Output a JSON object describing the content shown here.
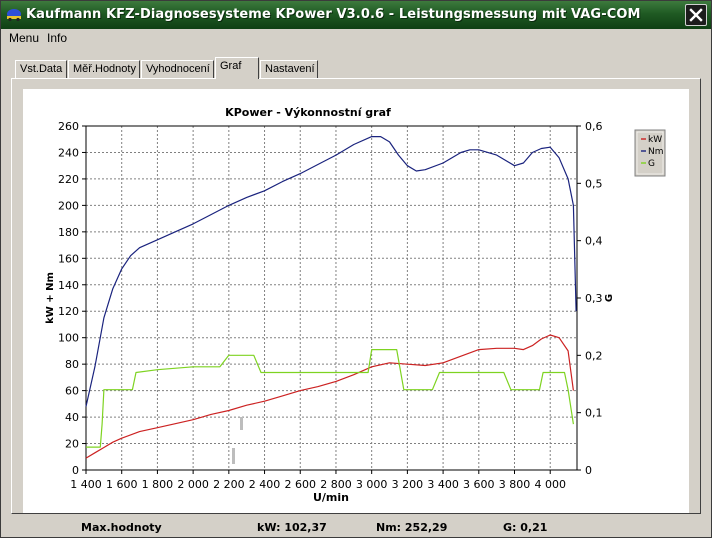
{
  "window": {
    "title": "Kaufmann KFZ-Diagnosesysteme  KPower V3.0.6 - Leistungsmessung mit VAG-COM",
    "close_icon": "close-x-icon",
    "app_icon": "car-logo-icon"
  },
  "menu": {
    "items": [
      "Menu",
      "Info"
    ]
  },
  "tabs": {
    "items": [
      "Vst.Data",
      "Měř.Hodnoty",
      "Vyhodnocení",
      "Graf",
      "Nastavení"
    ],
    "active": "Graf"
  },
  "chart_data": {
    "type": "line",
    "title": "KPower - Výkonnostní graf",
    "xlabel": "U/min",
    "ylabel": "kW + Nm",
    "y2label": "G",
    "xlim": [
      1400,
      4150
    ],
    "ylim": [
      0,
      260
    ],
    "y2lim": [
      0,
      0.6
    ],
    "xticks": [
      1400,
      1600,
      1800,
      2000,
      2200,
      2400,
      2600,
      2800,
      3000,
      3200,
      3400,
      3600,
      3800,
      4000
    ],
    "xtick_labels": [
      "1 400",
      "1 600",
      "1 800",
      "2 000",
      "2 200",
      "2 400",
      "2 600",
      "2 800",
      "3 000",
      "3 200",
      "3 400",
      "3 600",
      "3 800",
      "4 000"
    ],
    "yticks": [
      0,
      20,
      40,
      60,
      80,
      100,
      120,
      140,
      160,
      180,
      200,
      220,
      240,
      260
    ],
    "y2ticks": [
      0,
      0.1,
      0.2,
      0.3,
      0.4,
      0.5,
      0.6
    ],
    "y2tick_labels": [
      "0",
      "0,1",
      "0,2",
      "0,3",
      "0,4",
      "0,5",
      "0,6"
    ],
    "grid": true,
    "legend_position": "top-right",
    "series": [
      {
        "name": "kW",
        "color": "#cc2222",
        "axis": "left",
        "x": [
          1400,
          1450,
          1500,
          1550,
          1600,
          1700,
          1800,
          1900,
          2000,
          2100,
          2200,
          2300,
          2400,
          2500,
          2600,
          2700,
          2800,
          2900,
          3000,
          3100,
          3200,
          3300,
          3400,
          3500,
          3600,
          3700,
          3800,
          3850,
          3900,
          3950,
          4000,
          4050,
          4100,
          4130
        ],
        "values": [
          9,
          13,
          17,
          21,
          24,
          29,
          32,
          35,
          38,
          42,
          45,
          49,
          52,
          56,
          60,
          63,
          67,
          72,
          78,
          81,
          80,
          79,
          81,
          86,
          91,
          92,
          92,
          91,
          94,
          99,
          102,
          100,
          90,
          60
        ]
      },
      {
        "name": "Nm",
        "color": "#1a237e",
        "axis": "left",
        "x": [
          1400,
          1450,
          1500,
          1550,
          1600,
          1650,
          1700,
          1800,
          1900,
          2000,
          2100,
          2200,
          2300,
          2400,
          2500,
          2600,
          2700,
          2800,
          2900,
          3000,
          3050,
          3100,
          3150,
          3200,
          3250,
          3300,
          3400,
          3500,
          3550,
          3600,
          3700,
          3800,
          3850,
          3900,
          3950,
          4000,
          4050,
          4100,
          4130,
          4145
        ],
        "values": [
          48,
          78,
          115,
          137,
          152,
          162,
          168,
          174,
          180,
          186,
          193,
          200,
          206,
          211,
          218,
          224,
          231,
          238,
          246,
          252,
          252,
          248,
          238,
          230,
          226,
          227,
          232,
          240,
          242,
          242,
          238,
          230,
          232,
          240,
          243,
          244,
          236,
          220,
          200,
          120
        ]
      },
      {
        "name": "G",
        "color": "#7ed321",
        "axis": "right",
        "x": [
          1400,
          1480,
          1490,
          1500,
          1600,
          1660,
          1680,
          1800,
          2000,
          2150,
          2200,
          2300,
          2340,
          2380,
          2600,
          2800,
          2980,
          3000,
          3100,
          3140,
          3180,
          3300,
          3340,
          3380,
          3600,
          3740,
          3780,
          3900,
          3940,
          3960,
          4080,
          4100,
          4130
        ],
        "values": [
          0.04,
          0.04,
          0.08,
          0.14,
          0.14,
          0.14,
          0.17,
          0.175,
          0.18,
          0.18,
          0.2,
          0.2,
          0.2,
          0.17,
          0.17,
          0.17,
          0.17,
          0.21,
          0.21,
          0.21,
          0.14,
          0.14,
          0.14,
          0.17,
          0.17,
          0.17,
          0.14,
          0.14,
          0.14,
          0.17,
          0.17,
          0.14,
          0.08
        ]
      }
    ]
  },
  "summary": {
    "label": "Max.hodnoty",
    "kw": "kW: 102,37",
    "nm": "Nm: 252,29",
    "g": "G: 0,21"
  }
}
